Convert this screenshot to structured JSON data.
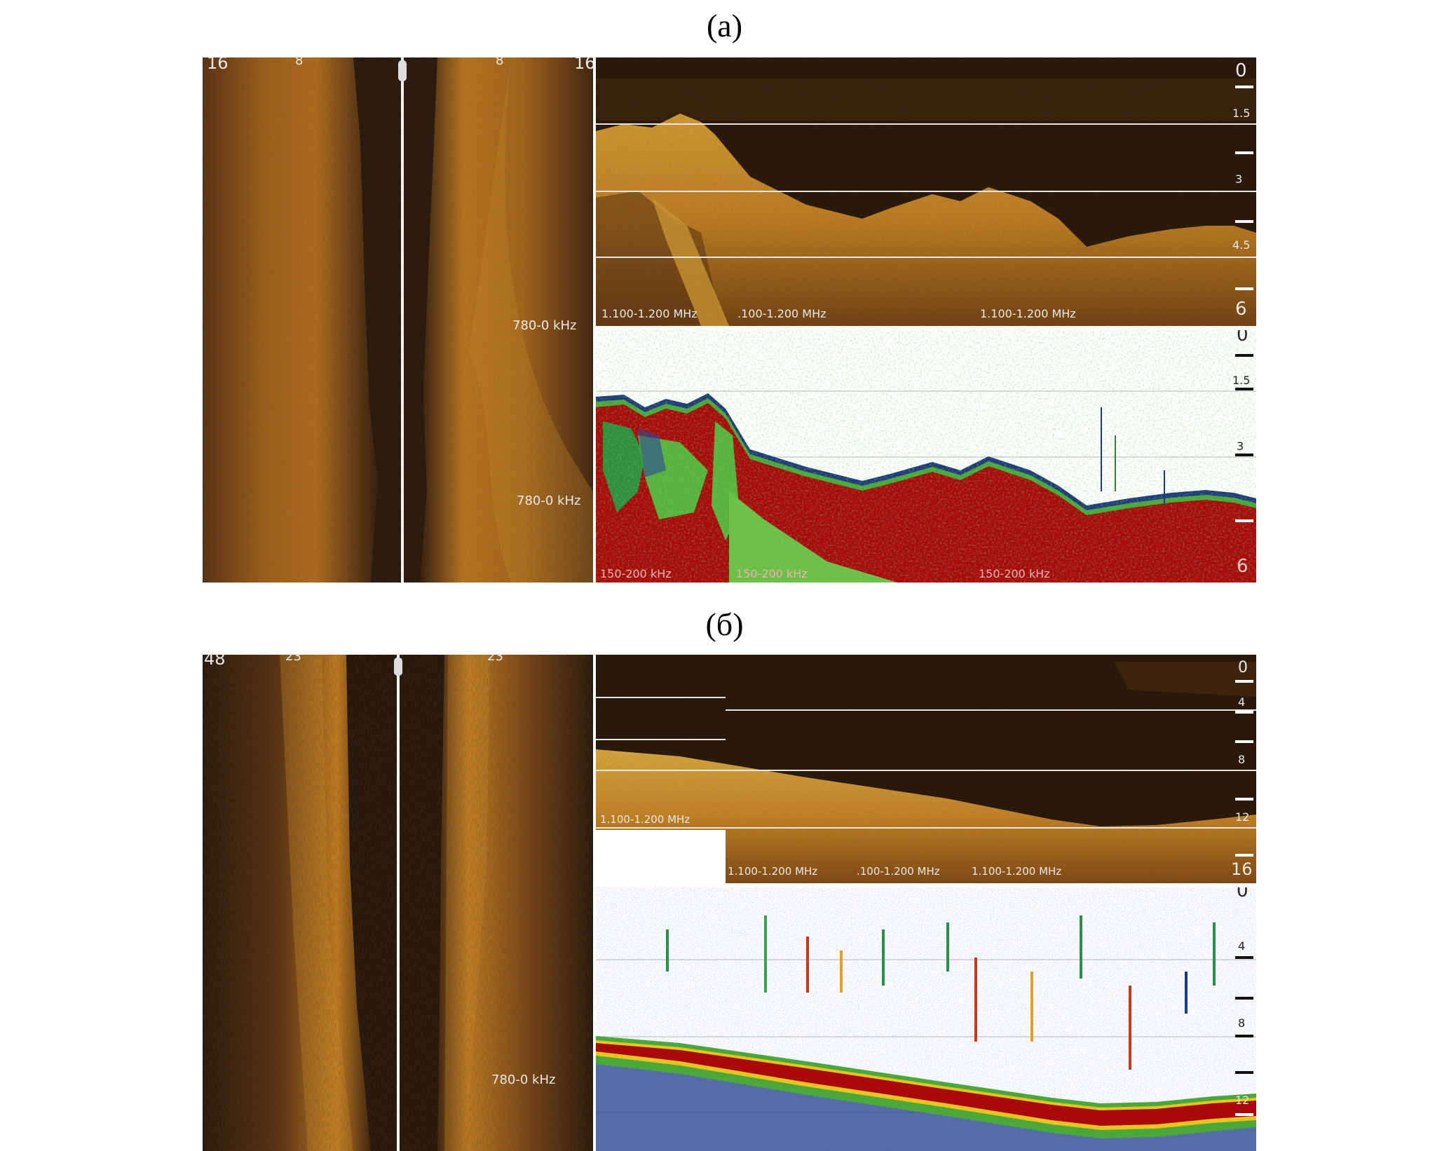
{
  "figure": {
    "label_a": "(а)",
    "label_b": "(б)"
  },
  "panel_a": {
    "side_scan": {
      "range_left": "16",
      "mid_left": "8",
      "mid_right": "8",
      "range_right": "16",
      "freq_1": "780-0 kHz",
      "freq_2": "780-0 kHz"
    },
    "down_imaging": {
      "depth_ticks": [
        "0",
        "1.5",
        "3",
        "4.5",
        "6"
      ],
      "freq_labels": [
        "1.100-1.200 MHz",
        ".100-1.200 MHz",
        "1.100-1.200 MHz"
      ]
    },
    "sonar": {
      "depth_ticks": [
        "0",
        "1.5",
        "3",
        "6"
      ],
      "freq_labels": [
        "150-200 kHz",
        "150-200 kHz",
        "150-200 kHz"
      ]
    }
  },
  "panel_b": {
    "side_scan": {
      "range_left": "48",
      "mid_left": "23",
      "mid_right": "23",
      "freq_1": "780-0 kHz"
    },
    "down_imaging": {
      "depth_ticks": [
        "0",
        "4",
        "8",
        "12",
        "16"
      ],
      "freq_label_left": "1.100-1.200 MHz",
      "freq_labels": [
        "1.100-1.200 MHz",
        ".100-1.200 MHz",
        "1.100-1.200 MHz"
      ]
    },
    "sonar": {
      "depth_ticks": [
        "0",
        "4",
        "8",
        "12"
      ]
    }
  },
  "colors": {
    "sidescan_dark": "#1a0e06",
    "sidescan_bright": "#d9891e",
    "imaging_dark": "#1e1007",
    "imaging_bright": "#f0a72a",
    "sonar_red": "#a80a0a",
    "sonar_green": "#4aa83a",
    "sonar_blue": "#1d3a8a"
  }
}
